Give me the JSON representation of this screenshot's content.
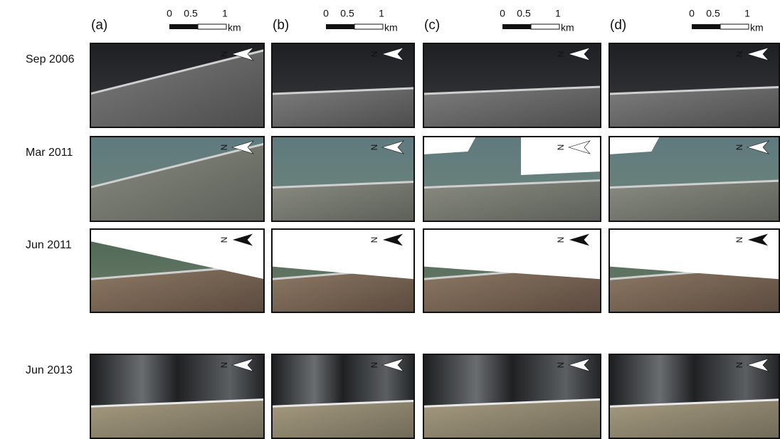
{
  "columns": [
    {
      "label": "(a)",
      "scale": {
        "ticks": [
          "0",
          "0.5",
          "1"
        ],
        "unit": "km"
      }
    },
    {
      "label": "(b)",
      "scale": {
        "ticks": [
          "0",
          "0.5",
          "1"
        ],
        "unit": "km"
      }
    },
    {
      "label": "(c)",
      "scale": {
        "ticks": [
          "0",
          "0.5",
          "1"
        ],
        "unit": "km"
      }
    },
    {
      "label": "(d)",
      "scale": {
        "ticks": [
          "0",
          "0.5",
          "1"
        ],
        "unit": "km"
      }
    }
  ],
  "rows": [
    {
      "label": "Sep 2006"
    },
    {
      "label": "Mar 2011"
    },
    {
      "label": "Jun 2011"
    },
    {
      "label": "Jun 2013"
    }
  ],
  "north_label": "N"
}
